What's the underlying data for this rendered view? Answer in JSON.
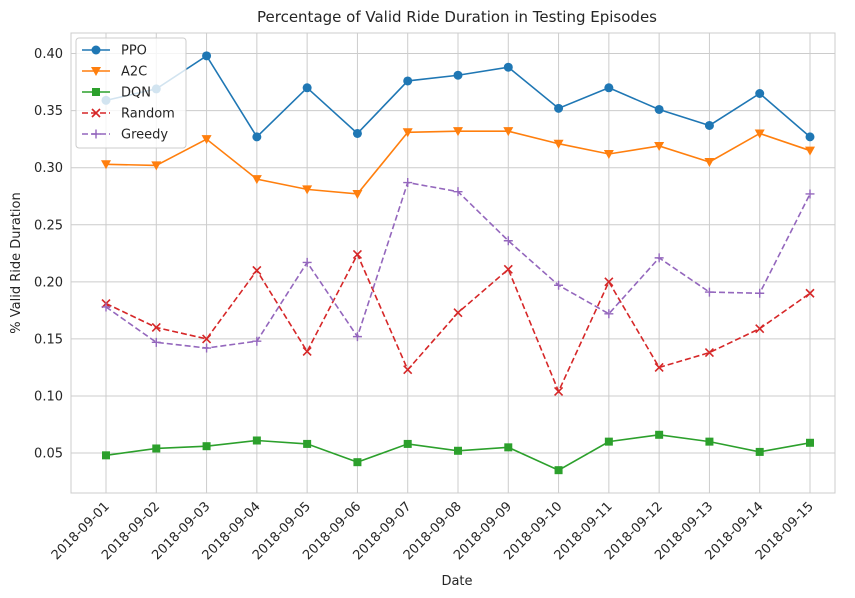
{
  "chart_data": {
    "type": "line",
    "title": "Percentage of Valid Ride Duration in Testing Episodes",
    "xlabel": "Date",
    "ylabel": "% Valid Ride Duration",
    "ylim": [
      0.015,
      0.418
    ],
    "grid": true,
    "legend_position": "top-left",
    "categories": [
      "2018-09-01",
      "2018-09-02",
      "2018-09-03",
      "2018-09-04",
      "2018-09-05",
      "2018-09-06",
      "2018-09-07",
      "2018-09-08",
      "2018-09-09",
      "2018-09-10",
      "2018-09-11",
      "2018-09-12",
      "2018-09-13",
      "2018-09-14",
      "2018-09-15"
    ],
    "yticks": [
      0.05,
      0.1,
      0.15,
      0.2,
      0.25,
      0.3,
      0.35,
      0.4
    ],
    "ytick_labels": [
      "0.05",
      "0.10",
      "0.15",
      "0.20",
      "0.25",
      "0.30",
      "0.35",
      "0.40"
    ],
    "series": [
      {
        "name": "PPO",
        "color": "#1f77b4",
        "marker": "circle",
        "dash": "solid",
        "values": [
          0.359,
          0.369,
          0.398,
          0.327,
          0.37,
          0.33,
          0.376,
          0.381,
          0.388,
          0.352,
          0.37,
          0.351,
          0.337,
          0.365,
          0.327
        ]
      },
      {
        "name": "A2C",
        "color": "#ff7f0e",
        "marker": "triangle-down",
        "dash": "solid",
        "values": [
          0.303,
          0.302,
          0.325,
          0.29,
          0.281,
          0.277,
          0.331,
          0.332,
          0.332,
          0.321,
          0.312,
          0.319,
          0.305,
          0.33,
          0.315
        ]
      },
      {
        "name": "DQN",
        "color": "#2ca02c",
        "marker": "square",
        "dash": "solid",
        "values": [
          0.048,
          0.054,
          0.056,
          0.061,
          0.058,
          0.042,
          0.058,
          0.052,
          0.055,
          0.035,
          0.06,
          0.066,
          0.06,
          0.051,
          0.059
        ]
      },
      {
        "name": "Random",
        "color": "#d62728",
        "marker": "x",
        "dash": "dashed",
        "values": [
          0.181,
          0.16,
          0.15,
          0.21,
          0.139,
          0.224,
          0.123,
          0.173,
          0.211,
          0.104,
          0.2,
          0.125,
          0.138,
          0.159,
          0.19
        ]
      },
      {
        "name": "Greedy",
        "color": "#9467bd",
        "marker": "plus",
        "dash": "dashed",
        "values": [
          0.178,
          0.147,
          0.142,
          0.148,
          0.217,
          0.152,
          0.287,
          0.279,
          0.236,
          0.197,
          0.172,
          0.221,
          0.191,
          0.19,
          0.277
        ]
      }
    ]
  }
}
